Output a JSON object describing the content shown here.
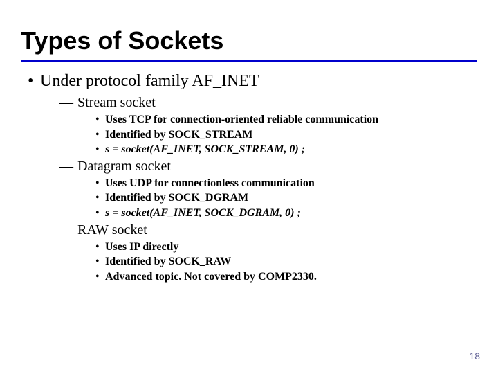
{
  "title": "Types of Sockets",
  "rule_color": "#0000cc",
  "level1_text": "Under protocol family AF_INET",
  "sections": {
    "s0": {
      "heading": "Stream socket",
      "b0": "Uses TCP for connection-oriented reliable communication",
      "b1": "Identified by SOCK_STREAM",
      "b2": "s = socket(AF_INET, SOCK_STREAM, 0) ;"
    },
    "s1": {
      "heading": "Datagram socket",
      "b0": "Uses UDP for connectionless communication",
      "b1": "Identified by SOCK_DGRAM",
      "b2": "s = socket(AF_INET, SOCK_DGRAM, 0) ;"
    },
    "s2": {
      "heading": "RAW socket",
      "b0": "Uses IP directly",
      "b1": "Identified by SOCK_RAW",
      "b2": "Advanced topic. Not covered by COMP2330."
    }
  },
  "page_number": "18",
  "bullets": {
    "dot": "•",
    "dash": "—"
  }
}
